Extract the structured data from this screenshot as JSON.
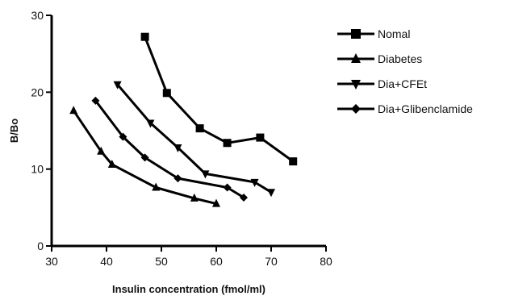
{
  "chart_data": {
    "type": "line",
    "title": "",
    "xlabel": "Insulin concentration (fmol/ml)",
    "ylabel": "B/Bo",
    "xlim": [
      30,
      80
    ],
    "ylim": [
      0,
      30
    ],
    "xticks": [
      30,
      40,
      50,
      60,
      70,
      80
    ],
    "yticks": [
      0,
      10,
      20,
      30
    ],
    "grid": false,
    "legend_position": "right",
    "series": [
      {
        "name": "Nomal",
        "marker": "square",
        "color": "#000000",
        "points": [
          [
            47,
            27.2
          ],
          [
            51,
            19.9
          ],
          [
            57,
            15.3
          ],
          [
            62,
            13.4
          ],
          [
            68,
            14.1
          ],
          [
            74,
            11.0
          ]
        ]
      },
      {
        "name": "Diabetes",
        "marker": "triangle-up",
        "color": "#000000",
        "points": [
          [
            34,
            17.6
          ],
          [
            39,
            12.3
          ],
          [
            41,
            10.6
          ],
          [
            49,
            7.6
          ],
          [
            56,
            6.2
          ],
          [
            60,
            5.5
          ]
        ]
      },
      {
        "name": "Dia+CFEt",
        "marker": "triangle-down",
        "color": "#000000",
        "points": [
          [
            42,
            21.0
          ],
          [
            48,
            16.0
          ],
          [
            53,
            12.8
          ],
          [
            58,
            9.4
          ],
          [
            67,
            8.3
          ],
          [
            70,
            7.0
          ]
        ]
      },
      {
        "name": "Dia+Glibenclamide",
        "marker": "diamond",
        "color": "#000000",
        "points": [
          [
            38,
            18.9
          ],
          [
            43,
            14.2
          ],
          [
            47,
            11.5
          ],
          [
            53,
            8.8
          ],
          [
            62,
            7.6
          ],
          [
            65,
            6.3
          ]
        ]
      }
    ]
  }
}
